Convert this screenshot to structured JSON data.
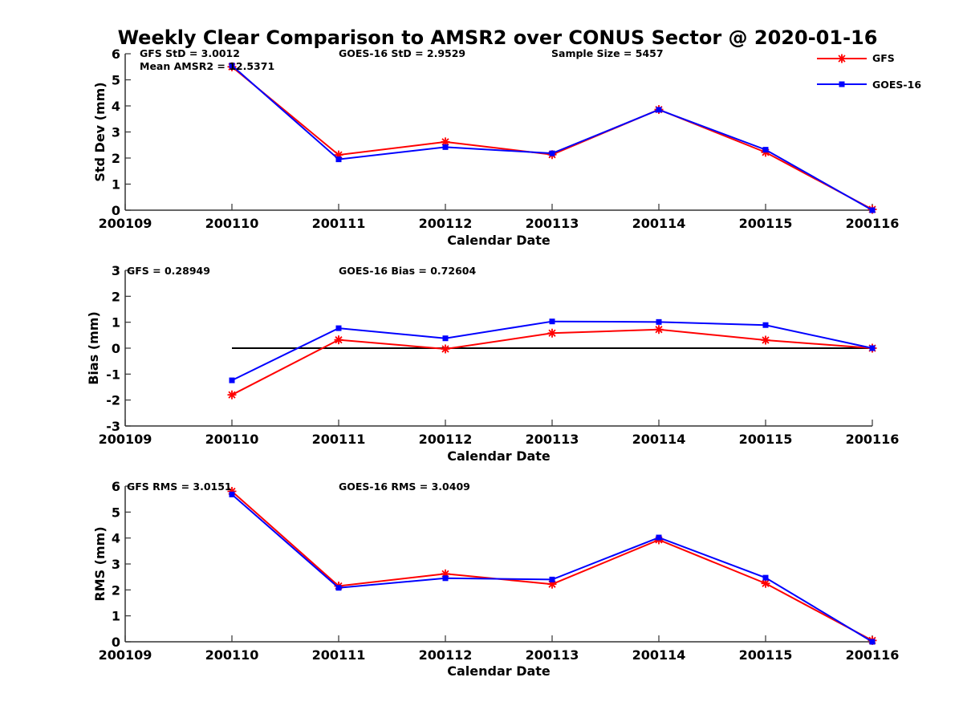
{
  "chart_data": {
    "title": "Weekly Clear Comparison to AMSR2 over CONUS Sector @ 2020-01-16",
    "type": "line",
    "legend": {
      "placement": "top-right",
      "entries": [
        {
          "name": "GFS",
          "color": "#ff0000",
          "marker": "asterisk"
        },
        {
          "name": "GOES-16",
          "color": "#0000ff",
          "marker": "square"
        }
      ]
    },
    "panels": [
      {
        "type": "line",
        "xlabel": "Calendar Date",
        "ylabel": "Std Dev (mm)",
        "ylim": [
          0,
          6
        ],
        "yticks": [
          "0",
          "1",
          "2",
          "3",
          "4",
          "5",
          "6"
        ],
        "x_ticklabels": [
          "200109",
          "200110",
          "200111",
          "200112",
          "200113",
          "200114",
          "200115",
          "200116"
        ],
        "annotations": {
          "gfs": "GFS StD = 3.0012",
          "mean": "Mean AMSR2 = 12.5371",
          "goes": "GOES-16 StD = 2.9529",
          "sample": "Sample Size = 5457"
        },
        "series": [
          {
            "name": "GFS",
            "color": "#ff0000",
            "marker": "asterisk",
            "x": [
              "200110",
              "200111",
              "200112",
              "200113",
              "200114",
              "200115",
              "200116"
            ],
            "values": [
              5.5,
              2.12,
              2.62,
              2.13,
              3.86,
              2.22,
              0.03
            ]
          },
          {
            "name": "GOES-16",
            "color": "#0000ff",
            "marker": "square",
            "x": [
              "200110",
              "200111",
              "200112",
              "200113",
              "200114",
              "200115",
              "200116"
            ],
            "values": [
              5.55,
              1.95,
              2.42,
              2.18,
              3.85,
              2.32,
              0.0
            ]
          }
        ]
      },
      {
        "type": "line",
        "xlabel": "Calendar Date",
        "ylabel": "Bias (mm)",
        "ylim": [
          -3,
          3
        ],
        "yticks": [
          "-3",
          "-2",
          "-1",
          "0",
          "1",
          "2",
          "3"
        ],
        "x_ticklabels": [
          "200109",
          "200110",
          "200111",
          "200112",
          "200113",
          "200114",
          "200115",
          "200116"
        ],
        "zero_line": {
          "from": "200110",
          "to": "200116",
          "value": 0
        },
        "annotations": {
          "gfs": "GFS = 0.28949",
          "goes": "GOES-16 Bias  = 0.72604"
        },
        "series": [
          {
            "name": "GFS",
            "color": "#ff0000",
            "marker": "asterisk",
            "x": [
              "200110",
              "200111",
              "200112",
              "200113",
              "200114",
              "200115",
              "200116"
            ],
            "values": [
              -1.8,
              0.32,
              -0.03,
              0.58,
              0.72,
              0.31,
              0.0
            ]
          },
          {
            "name": "GOES-16",
            "color": "#0000ff",
            "marker": "square",
            "x": [
              "200110",
              "200111",
              "200112",
              "200113",
              "200114",
              "200115",
              "200116"
            ],
            "values": [
              -1.24,
              0.77,
              0.38,
              1.03,
              1.01,
              0.89,
              0.0
            ]
          }
        ]
      },
      {
        "type": "line",
        "xlabel": "Calendar Date",
        "ylabel": "RMS (mm)",
        "ylim": [
          0,
          6
        ],
        "yticks": [
          "0",
          "1",
          "2",
          "3",
          "4",
          "5",
          "6"
        ],
        "x_ticklabels": [
          "200109",
          "200110",
          "200111",
          "200112",
          "200113",
          "200114",
          "200115",
          "200116"
        ],
        "annotations": {
          "gfs": "GFS RMS = 3.0151",
          "goes": "GOES-16 RMS = 3.0409"
        },
        "series": [
          {
            "name": "GFS",
            "color": "#ff0000",
            "marker": "asterisk",
            "x": [
              "200110",
              "200111",
              "200112",
              "200113",
              "200114",
              "200115",
              "200116"
            ],
            "values": [
              5.8,
              2.15,
              2.62,
              2.22,
              3.93,
              2.25,
              0.05
            ]
          },
          {
            "name": "GOES-16",
            "color": "#0000ff",
            "marker": "square",
            "x": [
              "200110",
              "200111",
              "200112",
              "200113",
              "200114",
              "200115",
              "200116"
            ],
            "values": [
              5.68,
              2.08,
              2.45,
              2.4,
              4.02,
              2.47,
              0.0
            ]
          }
        ]
      }
    ]
  }
}
